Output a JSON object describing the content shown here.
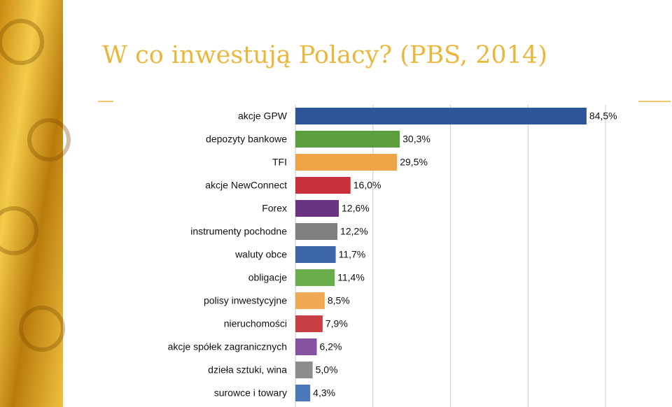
{
  "chart_data": {
    "type": "bar",
    "orientation": "horizontal",
    "title": "W co inwestują Polacy? (PBS, 2014)",
    "categories": [
      "akcje GPW",
      "depozyty bankowe",
      "TFI",
      "akcje NewConnect",
      "Forex",
      "instrumenty pochodne",
      "waluty obce",
      "obligacje",
      "polisy inwestycyjne",
      "nieruchomości",
      "akcje spółek zagranicznych",
      "dzieła sztuki, wina",
      "surowce i towary"
    ],
    "values": [
      84.5,
      30.3,
      29.5,
      16.0,
      12.6,
      12.2,
      11.7,
      11.4,
      8.5,
      7.9,
      6.2,
      5.0,
      4.3
    ],
    "value_labels": [
      "84,5%",
      "30,3%",
      "29,5%",
      "16,0%",
      "12,6%",
      "12,2%",
      "11,7%",
      "11,4%",
      "8,5%",
      "7,9%",
      "6,2%",
      "5,0%",
      "4,3%"
    ],
    "colors": [
      "#2d5597",
      "#5a9e3e",
      "#eea548",
      "#c9303a",
      "#6b3483",
      "#7f7f7f",
      "#3c67a8",
      "#6aae4c",
      "#f0aa55",
      "#c84045",
      "#8452a0",
      "#8c8c8c",
      "#4a78b8"
    ],
    "xlim": [
      0,
      90
    ],
    "xticks": [
      0,
      22.5,
      45,
      67.5,
      90
    ],
    "grid": true
  }
}
